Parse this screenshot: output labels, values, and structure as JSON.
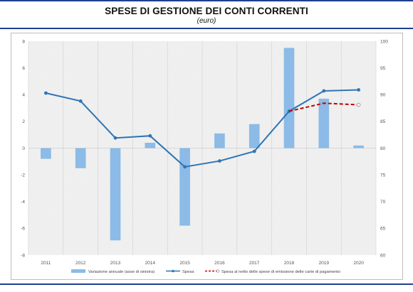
{
  "header": {
    "title": "SPESE DI GESTIONE DEI CONTI CORRENTI",
    "subtitle": "(euro)"
  },
  "colors": {
    "rule": "#1f3f8f",
    "bars": "#8bbbe6",
    "spesa_line": "#2e75b6",
    "netto_line": "#c00000",
    "plot_bg": "#f2f2f2"
  },
  "chart_data": {
    "type": "bar",
    "categories": [
      "2011",
      "2012",
      "2013",
      "2014",
      "2015",
      "2016",
      "2017",
      "2018",
      "2019",
      "2020"
    ],
    "y_left": {
      "min": -8,
      "max": 8,
      "ticks": [
        "8",
        "6",
        "4",
        "2",
        "0",
        "-2",
        "-4",
        "-6",
        "-8"
      ]
    },
    "y_right": {
      "min": 60,
      "max": 100,
      "ticks": [
        "100",
        "95",
        "90",
        "85",
        "80",
        "75",
        "70",
        "65",
        "60"
      ]
    },
    "grid": true,
    "legend_position": "bottom",
    "series": [
      {
        "name": "Variazione annuale (asse di sinistra)",
        "type": "bar",
        "axis": "left",
        "values": [
          -0.8,
          -1.5,
          -6.9,
          0.4,
          -5.8,
          1.1,
          1.8,
          7.5,
          3.7,
          0.2
        ]
      },
      {
        "name": "Spesa",
        "type": "line",
        "axis": "right",
        "values": [
          90.3,
          88.8,
          81.9,
          82.3,
          76.5,
          77.6,
          79.4,
          86.9,
          90.7,
          90.9
        ]
      },
      {
        "name": "Spesa al netto delle spese di emissione delle carte di pagamento",
        "type": "line",
        "axis": "right",
        "values": [
          null,
          null,
          null,
          null,
          null,
          null,
          null,
          86.9,
          88.4,
          88.1
        ]
      }
    ]
  }
}
